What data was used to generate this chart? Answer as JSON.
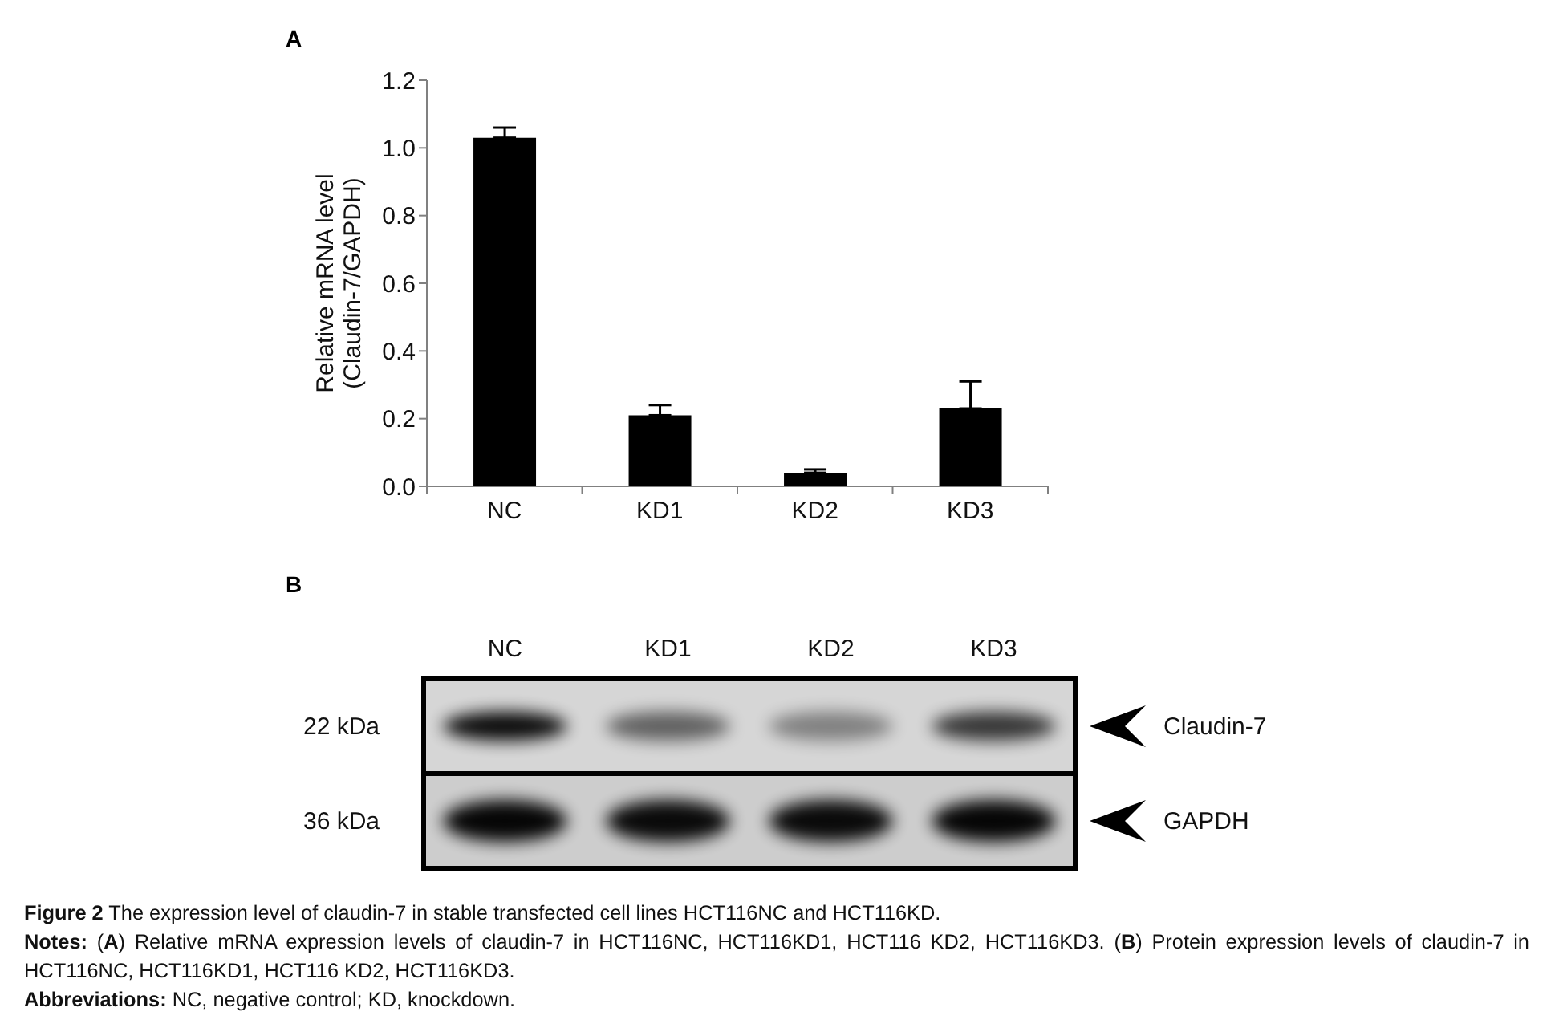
{
  "chart_data": [
    {
      "type": "bar",
      "title": "A",
      "ylabel": "Relative mRNA level\n(Claudin-7/GAPDH)",
      "categories": [
        "NC",
        "KD1",
        "KD2",
        "KD3"
      ],
      "values": [
        1.03,
        0.21,
        0.04,
        0.23
      ],
      "errors": [
        [
          1.03,
          1.06
        ],
        [
          0.21,
          0.24
        ],
        [
          0.04,
          0.05
        ],
        [
          0.23,
          0.31
        ]
      ],
      "color": "#000000",
      "ylim": [
        0,
        1.2
      ],
      "yticks": [
        {
          "value": 0,
          "label": "0.0"
        },
        0.2,
        0.4,
        0.6,
        0.8,
        {
          "value": 1,
          "label": "1.0"
        },
        1.2
      ]
    },
    {
      "type": "other",
      "title": "B",
      "categories": [
        "NC",
        "KD1",
        "KD2",
        "KD3"
      ],
      "y_categories": [
        "22 kDa",
        "36 kDa"
      ],
      "y2_categories": [
        "Claudin-7",
        "GAPDH"
      ],
      "annotations": [
        "Figure 2 The expression level of claudin-7 in stable transfected cell lines HCT116NC and HCT116KD.",
        "Notes: (A) Relative mRNA expression levels of claudin-7 in HCT116NC, HCT116KD1, HCT116 KD2, HCT116KD3. (B) Protein expression levels of claudin-7 in HCT116NC, HCT116KD1, HCT116 KD2, HCT116KD3.",
        "Abbreviations: NC, negative control; KD, knockdown."
      ]
    }
  ]
}
